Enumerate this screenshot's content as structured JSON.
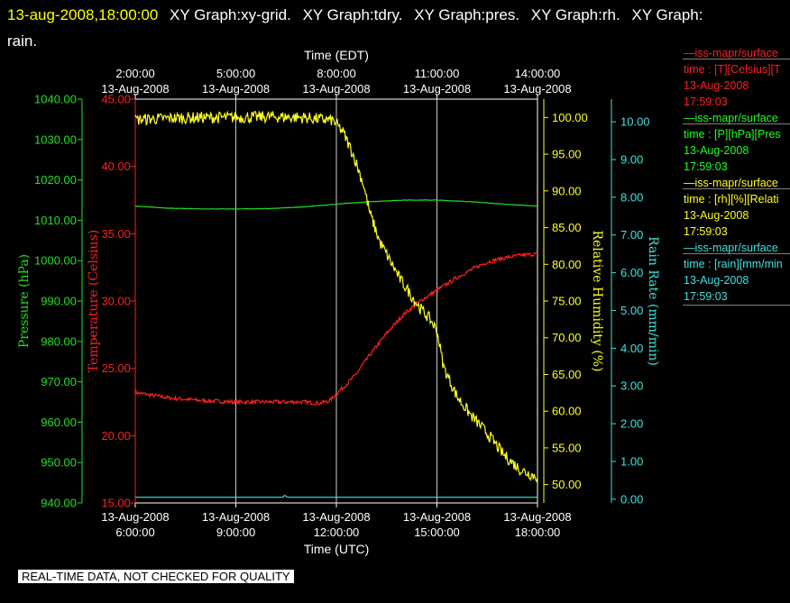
{
  "header": {
    "datetime": "13-aug-2008,18:00:00",
    "titles": [
      "XY Graph:xy-grid.",
      "XY Graph:tdry.",
      "XY Graph:pres.",
      "XY Graph:rh.",
      "XY Graph:",
      "rain."
    ]
  },
  "notice": "REAL-TIME DATA, NOT CHECKED FOR QUALITY",
  "legend": [
    {
      "line1": "—iss-mapr/surface",
      "line2": "time : [T][Celsius][T",
      "line3": "13-Aug-2008",
      "line4": "17:59:03",
      "color": "#ff2020"
    },
    {
      "line1": "—iss-mapr/surface",
      "line2": "time : [P][hPa][Pres",
      "line3": "13-Aug-2008",
      "line4": "17:59:03",
      "color": "#20ff20"
    },
    {
      "line1": "—iss-mapr/surface",
      "line2": "time : [rh][%][Relati",
      "line3": "13-Aug-2008",
      "line4": "17:59:03",
      "color": "#ffff20"
    },
    {
      "line1": "—iss-mapr/surface",
      "line2": "time : [rain][mm/min",
      "line3": "13-Aug-2008",
      "line4": "17:59:03",
      "color": "#40e0e0"
    }
  ],
  "chart_data": {
    "type": "line",
    "grid": true,
    "x_top": {
      "label": "Time (EDT)",
      "ticks": [
        {
          "l1": "2:00:00",
          "l2": "13-Aug-2008"
        },
        {
          "l1": "5:00:00",
          "l2": "13-Aug-2008"
        },
        {
          "l1": "8:00:00",
          "l2": "13-Aug-2008"
        },
        {
          "l1": "11:00:00",
          "l2": "13-Aug-2008"
        },
        {
          "l1": "14:00:00",
          "l2": "13-Aug-2008"
        }
      ]
    },
    "x_bottom": {
      "label": "Time (UTC)",
      "ticks": [
        {
          "l1": "13-Aug-2008",
          "l2": "6:00:00"
        },
        {
          "l1": "13-Aug-2008",
          "l2": "9:00:00"
        },
        {
          "l1": "13-Aug-2008",
          "l2": "12:00:00"
        },
        {
          "l1": "13-Aug-2008",
          "l2": "15:00:00"
        },
        {
          "l1": "13-Aug-2008",
          "l2": "18:00:00"
        }
      ],
      "xlim": [
        6,
        18
      ]
    },
    "axes": [
      {
        "id": "pres",
        "label": "Pressure (hPa)",
        "color": "#20e020",
        "ylim": [
          940,
          1040
        ],
        "ticks": [
          "940.00",
          "950.00",
          "960.00",
          "970.00",
          "980.00",
          "990.00",
          "1000.00",
          "1010.00",
          "1020.00",
          "1030.00",
          "1040.00"
        ]
      },
      {
        "id": "tdry",
        "label": "Temperature (Celsius)",
        "color": "#ff2020",
        "ylim": [
          15,
          45
        ],
        "ticks": [
          "15.00",
          "20.00",
          "25.00",
          "30.00",
          "35.00",
          "40.00",
          "45.00"
        ]
      },
      {
        "id": "rh",
        "label": "Relative Humidity (%)",
        "color": "#ffff20",
        "ylim": [
          47.5,
          102.5
        ],
        "ticks": [
          "50.00",
          "55.00",
          "60.00",
          "65.00",
          "70.00",
          "75.00",
          "80.00",
          "85.00",
          "90.00",
          "95.00",
          "100.00"
        ]
      },
      {
        "id": "rain",
        "label": "Rain Rate (mm/min)",
        "color": "#40e0e0",
        "ylim": [
          -0.1,
          10.6
        ],
        "ticks": [
          "0.00",
          "1.00",
          "2.00",
          "3.00",
          "4.00",
          "5.00",
          "6.00",
          "7.00",
          "8.00",
          "9.00",
          "10.00"
        ]
      }
    ],
    "series": [
      {
        "axis": "tdry",
        "color": "#ff2020",
        "noise": 0.15,
        "x": [
          6.0,
          6.5,
          7.0,
          8.0,
          9.0,
          10.0,
          11.0,
          11.5,
          11.8,
          12.0,
          12.3,
          12.6,
          13.0,
          13.5,
          14.0,
          14.5,
          15.0,
          15.5,
          16.0,
          16.5,
          17.0,
          17.5,
          18.0
        ],
        "y": [
          23.2,
          23.0,
          22.8,
          22.6,
          22.5,
          22.5,
          22.5,
          22.4,
          22.6,
          23.1,
          23.8,
          24.6,
          26.0,
          27.6,
          29.0,
          30.0,
          30.8,
          31.6,
          32.3,
          32.9,
          33.2,
          33.4,
          33.5
        ]
      },
      {
        "axis": "pres",
        "color": "#20e020",
        "noise": 0.05,
        "x": [
          6.0,
          7.0,
          8.0,
          9.0,
          10.0,
          11.0,
          12.0,
          13.0,
          14.0,
          15.0,
          16.0,
          17.0,
          18.0
        ],
        "y": [
          1013.5,
          1013.0,
          1012.8,
          1012.8,
          1012.9,
          1013.3,
          1014.0,
          1014.6,
          1015.0,
          1015.0,
          1014.6,
          1014.0,
          1013.5
        ]
      },
      {
        "axis": "rh",
        "color": "#ffff20",
        "noise": 0.8,
        "x": [
          6.0,
          7.0,
          8.0,
          9.0,
          10.0,
          11.0,
          11.9,
          12.2,
          12.5,
          12.8,
          13.0,
          13.3,
          13.6,
          13.9,
          14.2,
          14.5,
          14.8,
          15.0,
          15.2,
          15.6,
          16.0,
          16.5,
          17.0,
          17.5,
          18.0
        ],
        "y": [
          99.7,
          99.9,
          100.0,
          100.0,
          100.1,
          100.0,
          99.6,
          98.0,
          95.0,
          91.0,
          87.0,
          83.0,
          80.5,
          78.0,
          76.0,
          74.0,
          72.5,
          71.0,
          66.0,
          62.0,
          59.5,
          57.0,
          54.0,
          52.0,
          51.0
        ]
      },
      {
        "axis": "rain",
        "color": "#40e0e0",
        "noise": 0.0,
        "x": [
          6.0,
          10.4,
          10.45,
          10.5,
          10.55,
          18.0
        ],
        "y": [
          0.05,
          0.05,
          0.1,
          0.08,
          0.05,
          0.05
        ]
      }
    ]
  }
}
